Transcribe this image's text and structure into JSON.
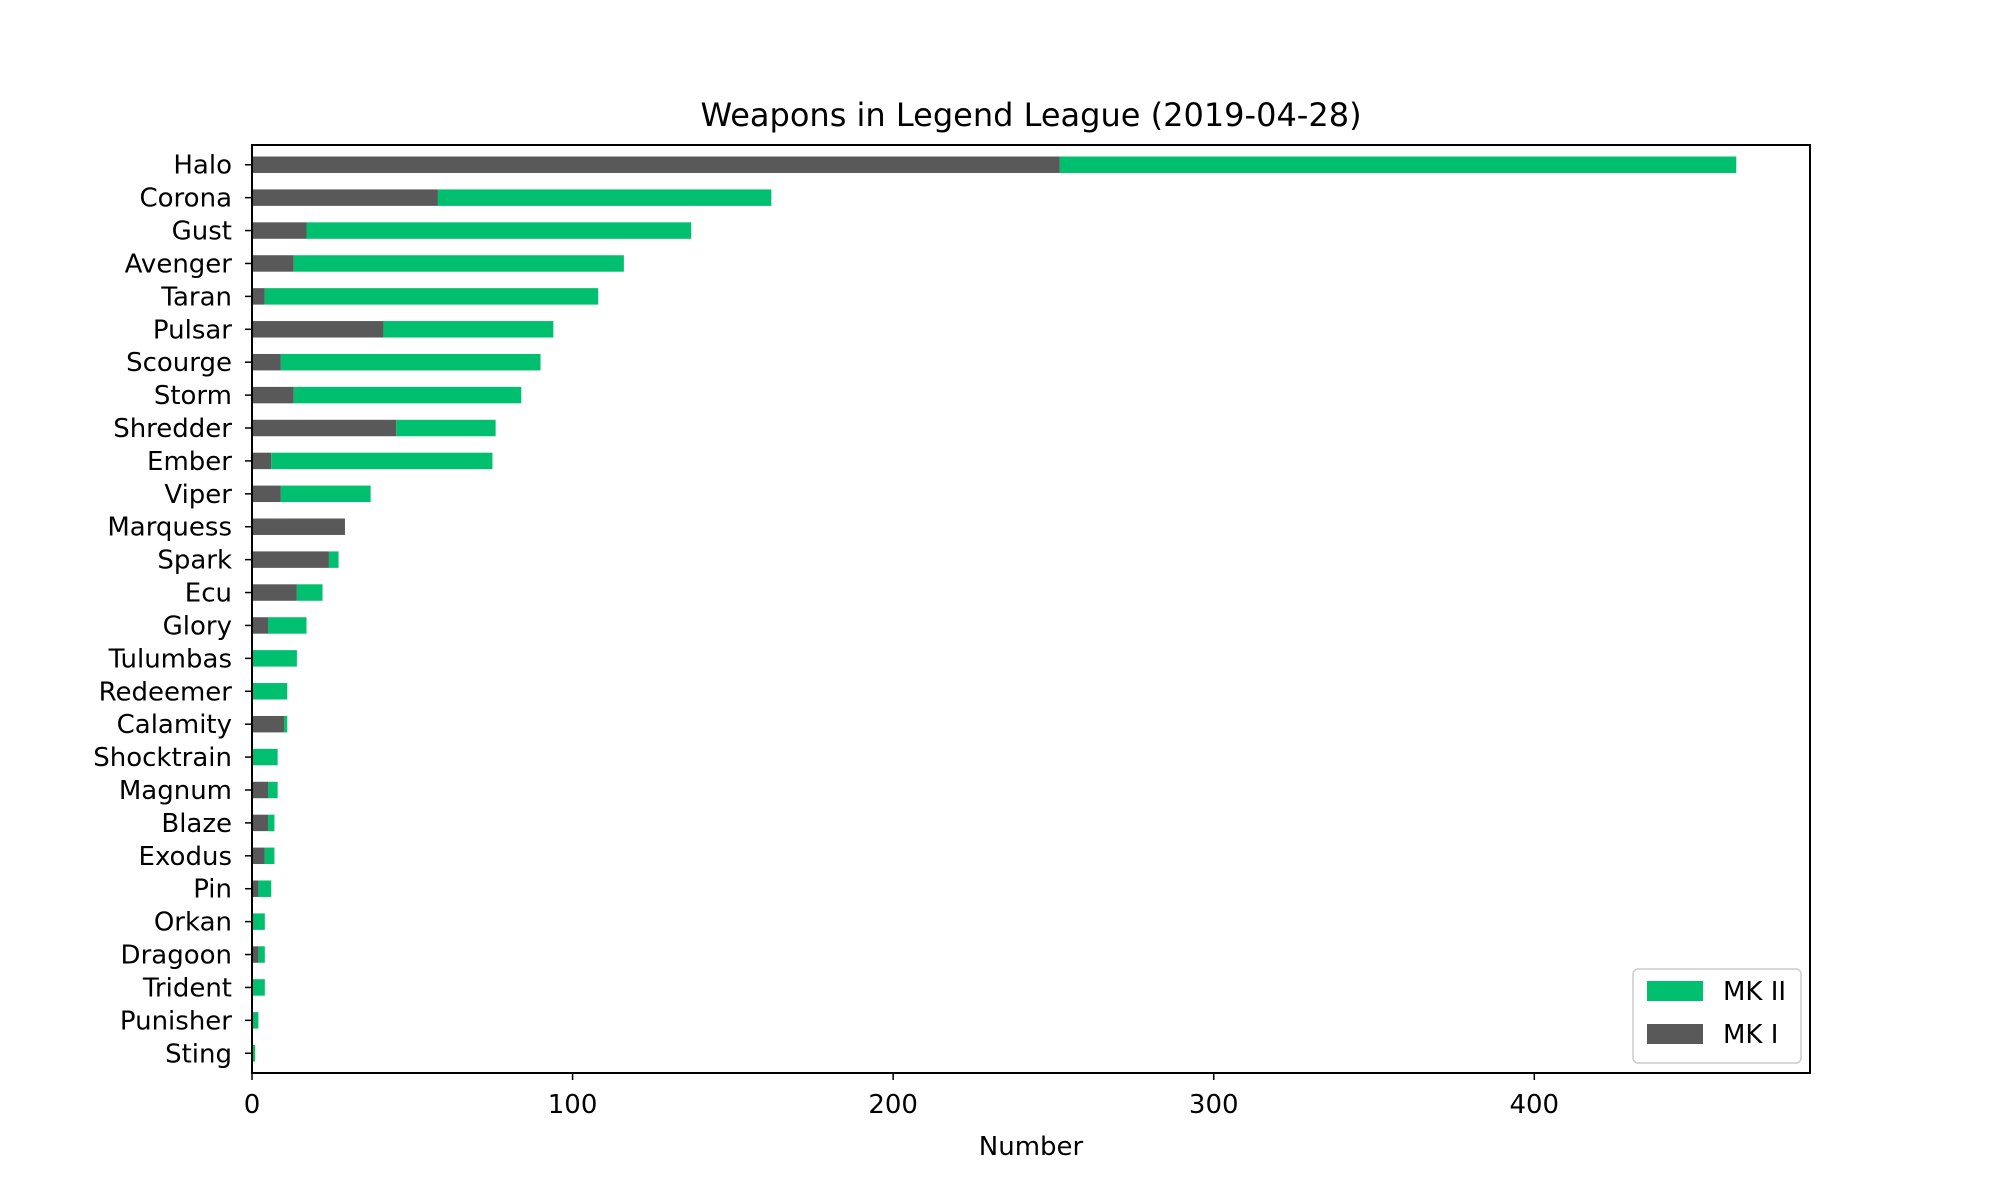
{
  "chart_data": {
    "type": "bar",
    "orientation": "horizontal",
    "stacked": true,
    "title": "Weapons in Legend League (2019-04-28)",
    "xlabel": "Number",
    "ylabel": "",
    "xlim": [
      0,
      486
    ],
    "xticks": [
      0,
      100,
      200,
      300,
      400
    ],
    "grid": false,
    "legend_position": "bottom-right",
    "categories": [
      "Halo",
      "Corona",
      "Gust",
      "Avenger",
      "Taran",
      "Pulsar",
      "Scourge",
      "Storm",
      "Shredder",
      "Ember",
      "Viper",
      "Marquess",
      "Spark",
      "Ecu",
      "Glory",
      "Tulumbas",
      "Redeemer",
      "Calamity",
      "Shocktrain",
      "Magnum",
      "Blaze",
      "Exodus",
      "Pin",
      "Orkan",
      "Dragoon",
      "Trident",
      "Punisher",
      "Sting"
    ],
    "series": [
      {
        "name": "MK I",
        "color": "#595959",
        "values": [
          252,
          58,
          17,
          13,
          4,
          41,
          9,
          13,
          45,
          6,
          9,
          29,
          24,
          14,
          5,
          0,
          0,
          10,
          0,
          5,
          5,
          4,
          2,
          0,
          2,
          0,
          0,
          0
        ]
      },
      {
        "name": "MK II",
        "color": "#00bf6f",
        "values": [
          211,
          104,
          120,
          103,
          104,
          53,
          81,
          71,
          31,
          69,
          28,
          0,
          3,
          8,
          12,
          14,
          11,
          1,
          8,
          3,
          2,
          3,
          4,
          4,
          2,
          4,
          2,
          1
        ]
      }
    ],
    "legend": [
      {
        "label": "MK II",
        "color": "#00bf6f"
      },
      {
        "label": "MK I",
        "color": "#595959"
      }
    ]
  }
}
